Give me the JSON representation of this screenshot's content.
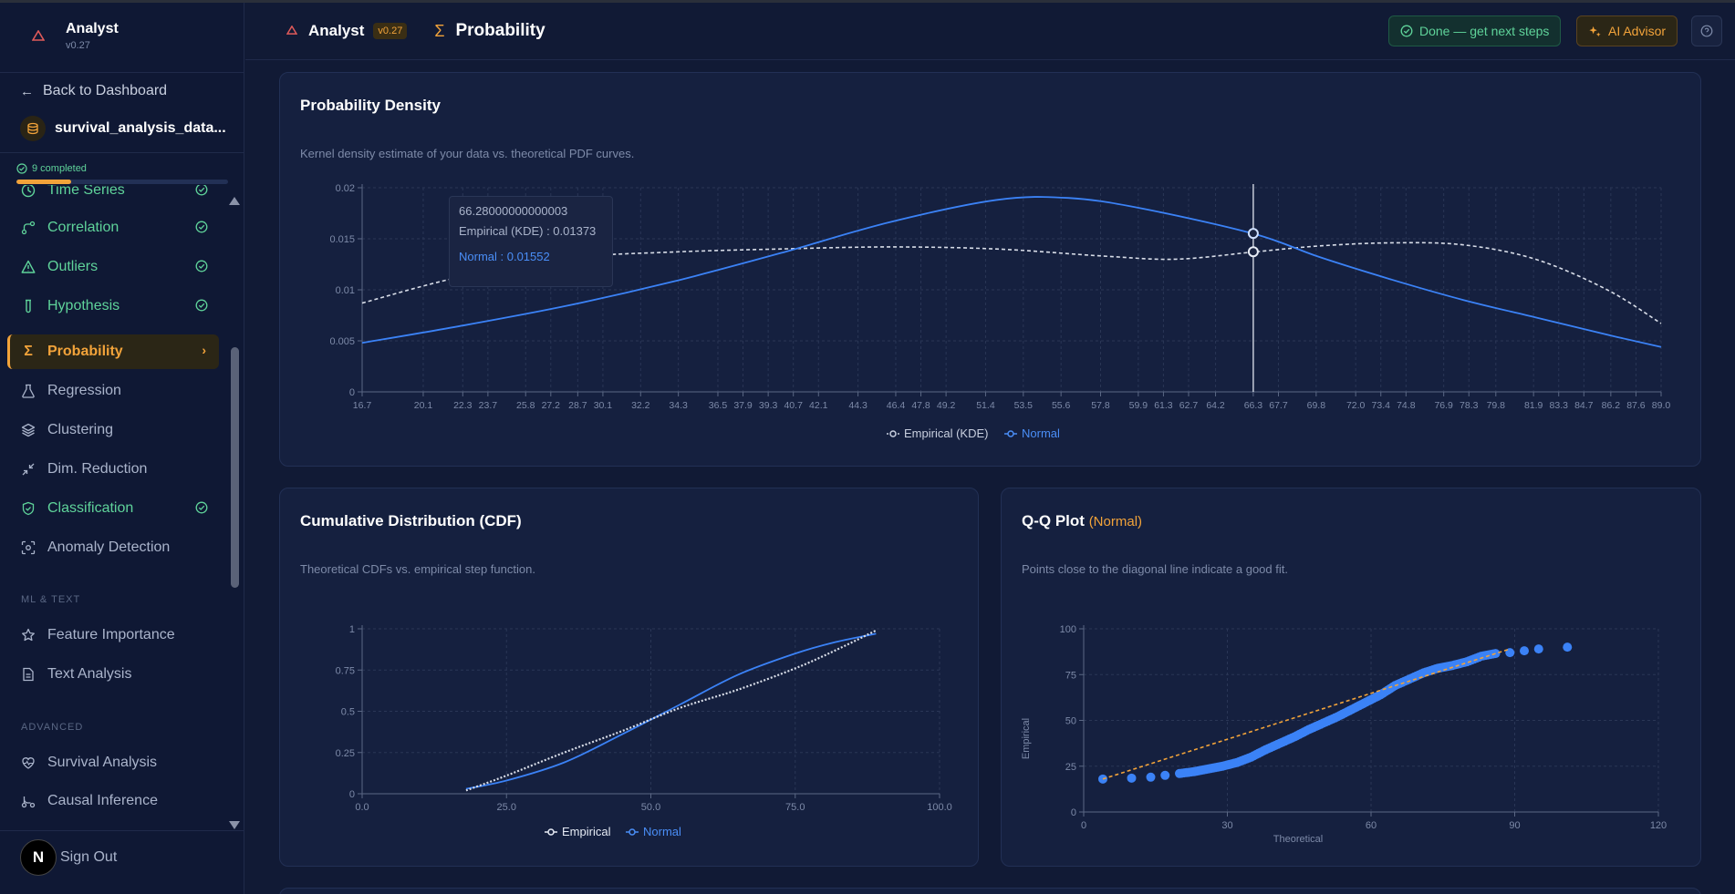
{
  "sidebar": {
    "brand_name": "Analyst",
    "brand_version": "v0.27",
    "back_label": "Back to Dashboard",
    "dataset_name": "survival_analysis_data...",
    "progress_label": "9 completed",
    "progress_fraction": 0.26,
    "items": [
      {
        "label": "Time Series",
        "status": "done",
        "icon": "clock-icon"
      },
      {
        "label": "Correlation",
        "status": "done",
        "icon": "correlation-icon"
      },
      {
        "label": "Outliers",
        "status": "done",
        "icon": "warning-icon"
      },
      {
        "label": "Hypothesis",
        "status": "done",
        "icon": "beaker-icon"
      },
      {
        "label": "Probability",
        "status": "active",
        "icon": "sigma-icon"
      },
      {
        "label": "Regression",
        "status": "none",
        "icon": "flask-icon"
      },
      {
        "label": "Clustering",
        "status": "none",
        "icon": "layers-icon"
      },
      {
        "label": "Dim. Reduction",
        "status": "none",
        "icon": "shrink-icon"
      },
      {
        "label": "Classification",
        "status": "done",
        "icon": "shield-icon"
      },
      {
        "label": "Anomaly Detection",
        "status": "none",
        "icon": "scan-icon"
      }
    ],
    "section_ml": "ML & TEXT",
    "ml_items": [
      {
        "label": "Feature Importance",
        "icon": "star-icon"
      },
      {
        "label": "Text Analysis",
        "icon": "document-icon"
      }
    ],
    "section_advanced": "ADVANCED",
    "advanced_items": [
      {
        "label": "Survival Analysis",
        "icon": "heart-pulse-icon"
      },
      {
        "label": "Causal Inference",
        "icon": "branch-icon"
      }
    ],
    "signout_label": "Sign Out",
    "avatar_letter": "N"
  },
  "header": {
    "app_name": "Analyst",
    "version": "v0.27",
    "page_title": "Probability",
    "done_button": "Done — get next steps",
    "ai_button": "AI Advisor"
  },
  "pdf_card": {
    "title": "Probability Density",
    "description": "Kernel density estimate of your data vs. theoretical PDF curves.",
    "tooltip": {
      "x": "66.28000000000003",
      "kde": "Empirical (KDE) : 0.01373",
      "normal": "Normal : 0.01552"
    }
  },
  "cdf_card": {
    "title": "Cumulative Distribution (CDF)",
    "description": "Theoretical CDFs vs. empirical step function."
  },
  "qq_card": {
    "title": "Q-Q Plot",
    "title_suffix": "(Normal)",
    "description": "Points close to the diagonal line indicate a good fit."
  },
  "colors": {
    "accent": "#f2a33a",
    "success": "#5fd39a",
    "series_normal": "#3b82f6",
    "series_empirical": "#d8dde8"
  },
  "chart_data": [
    {
      "type": "line",
      "title": "Probability Density",
      "x_ticks": [
        "16.7",
        "20.1",
        "22.3",
        "23.7",
        "25.8",
        "27.2",
        "28.7",
        "30.1",
        "32.2",
        "34.3",
        "36.5",
        "37.9",
        "39.3",
        "40.7",
        "42.1",
        "44.3",
        "46.4",
        "47.8",
        "49.2",
        "51.4",
        "53.5",
        "55.6",
        "57.8",
        "59.9",
        "61.3",
        "62.7",
        "64.2",
        "66.3",
        "67.7",
        "69.8",
        "72.0",
        "73.4",
        "74.8",
        "76.9",
        "78.3",
        "79.8",
        "81.9",
        "83.3",
        "84.7",
        "86.2",
        "87.6",
        "89.0"
      ],
      "y_ticks": [
        "0",
        "0.005",
        "0.01",
        "0.015",
        "0.02"
      ],
      "xlim": [
        16.7,
        89.0
      ],
      "ylim": [
        0,
        0.02
      ],
      "legend": "bottom",
      "series": [
        {
          "name": "Empirical (KDE)",
          "style": "dashed",
          "x": [
            16.7,
            22,
            28,
            34,
            40,
            46,
            52,
            58,
            62,
            66.3,
            70,
            74,
            78,
            82,
            86,
            89
          ],
          "values": [
            0.0087,
            0.0112,
            0.0131,
            0.0137,
            0.014,
            0.0142,
            0.014,
            0.0133,
            0.013,
            0.0137,
            0.0143,
            0.0146,
            0.0144,
            0.013,
            0.01,
            0.0067
          ]
        },
        {
          "name": "Normal",
          "style": "solid",
          "x": [
            16.7,
            22,
            28,
            34,
            40,
            46,
            52,
            56,
            60,
            66.3,
            70,
            74,
            78,
            82,
            86,
            89
          ],
          "values": [
            0.0048,
            0.0064,
            0.0084,
            0.0108,
            0.0136,
            0.0166,
            0.0188,
            0.019,
            0.018,
            0.0155,
            0.0132,
            0.011,
            0.009,
            0.0073,
            0.0056,
            0.0044
          ]
        }
      ]
    },
    {
      "type": "line",
      "title": "Cumulative Distribution (CDF)",
      "x_ticks": [
        "0.0",
        "25.0",
        "50.0",
        "75.0",
        "100.0"
      ],
      "y_ticks": [
        "0",
        "0.25",
        "0.5",
        "0.75",
        "1"
      ],
      "xlim": [
        0,
        100
      ],
      "ylim": [
        0,
        1
      ],
      "legend": "bottom",
      "series": [
        {
          "name": "Empirical",
          "style": "dotted",
          "x": [
            18,
            25,
            35,
            45,
            55,
            65,
            75,
            82,
            89
          ],
          "values": [
            0.02,
            0.11,
            0.25,
            0.38,
            0.52,
            0.63,
            0.76,
            0.87,
            0.99
          ]
        },
        {
          "name": "Normal",
          "style": "solid",
          "x": [
            18,
            25,
            35,
            45,
            55,
            65,
            75,
            82,
            89
          ],
          "values": [
            0.03,
            0.08,
            0.19,
            0.36,
            0.54,
            0.72,
            0.85,
            0.92,
            0.97
          ]
        }
      ]
    },
    {
      "type": "scatter",
      "title": "Q-Q Plot (Normal)",
      "xlabel": "Theoretical",
      "ylabel": "Empirical",
      "x_ticks": [
        "0",
        "30",
        "60",
        "90",
        "120"
      ],
      "y_ticks": [
        "0",
        "25",
        "50",
        "75",
        "100"
      ],
      "xlim": [
        0,
        120
      ],
      "ylim": [
        0,
        100
      ],
      "reference_line": {
        "x": [
          4,
          89
        ],
        "y": [
          18,
          89
        ]
      },
      "points": {
        "x": [
          4,
          10,
          14,
          17,
          20,
          23,
          26,
          29,
          32,
          35,
          38,
          41,
          44,
          47,
          50,
          53,
          56,
          59,
          62,
          65,
          68,
          71,
          74,
          77,
          80,
          83,
          86,
          89,
          92,
          95,
          101
        ],
        "y": [
          18,
          18.5,
          19,
          20,
          21,
          22,
          23.5,
          25,
          27,
          30,
          34,
          37.5,
          41,
          45,
          48.5,
          52,
          56,
          60,
          64,
          69,
          72.5,
          76,
          78.5,
          80,
          82,
          85,
          86.5,
          87,
          88,
          89,
          90
        ]
      }
    }
  ]
}
